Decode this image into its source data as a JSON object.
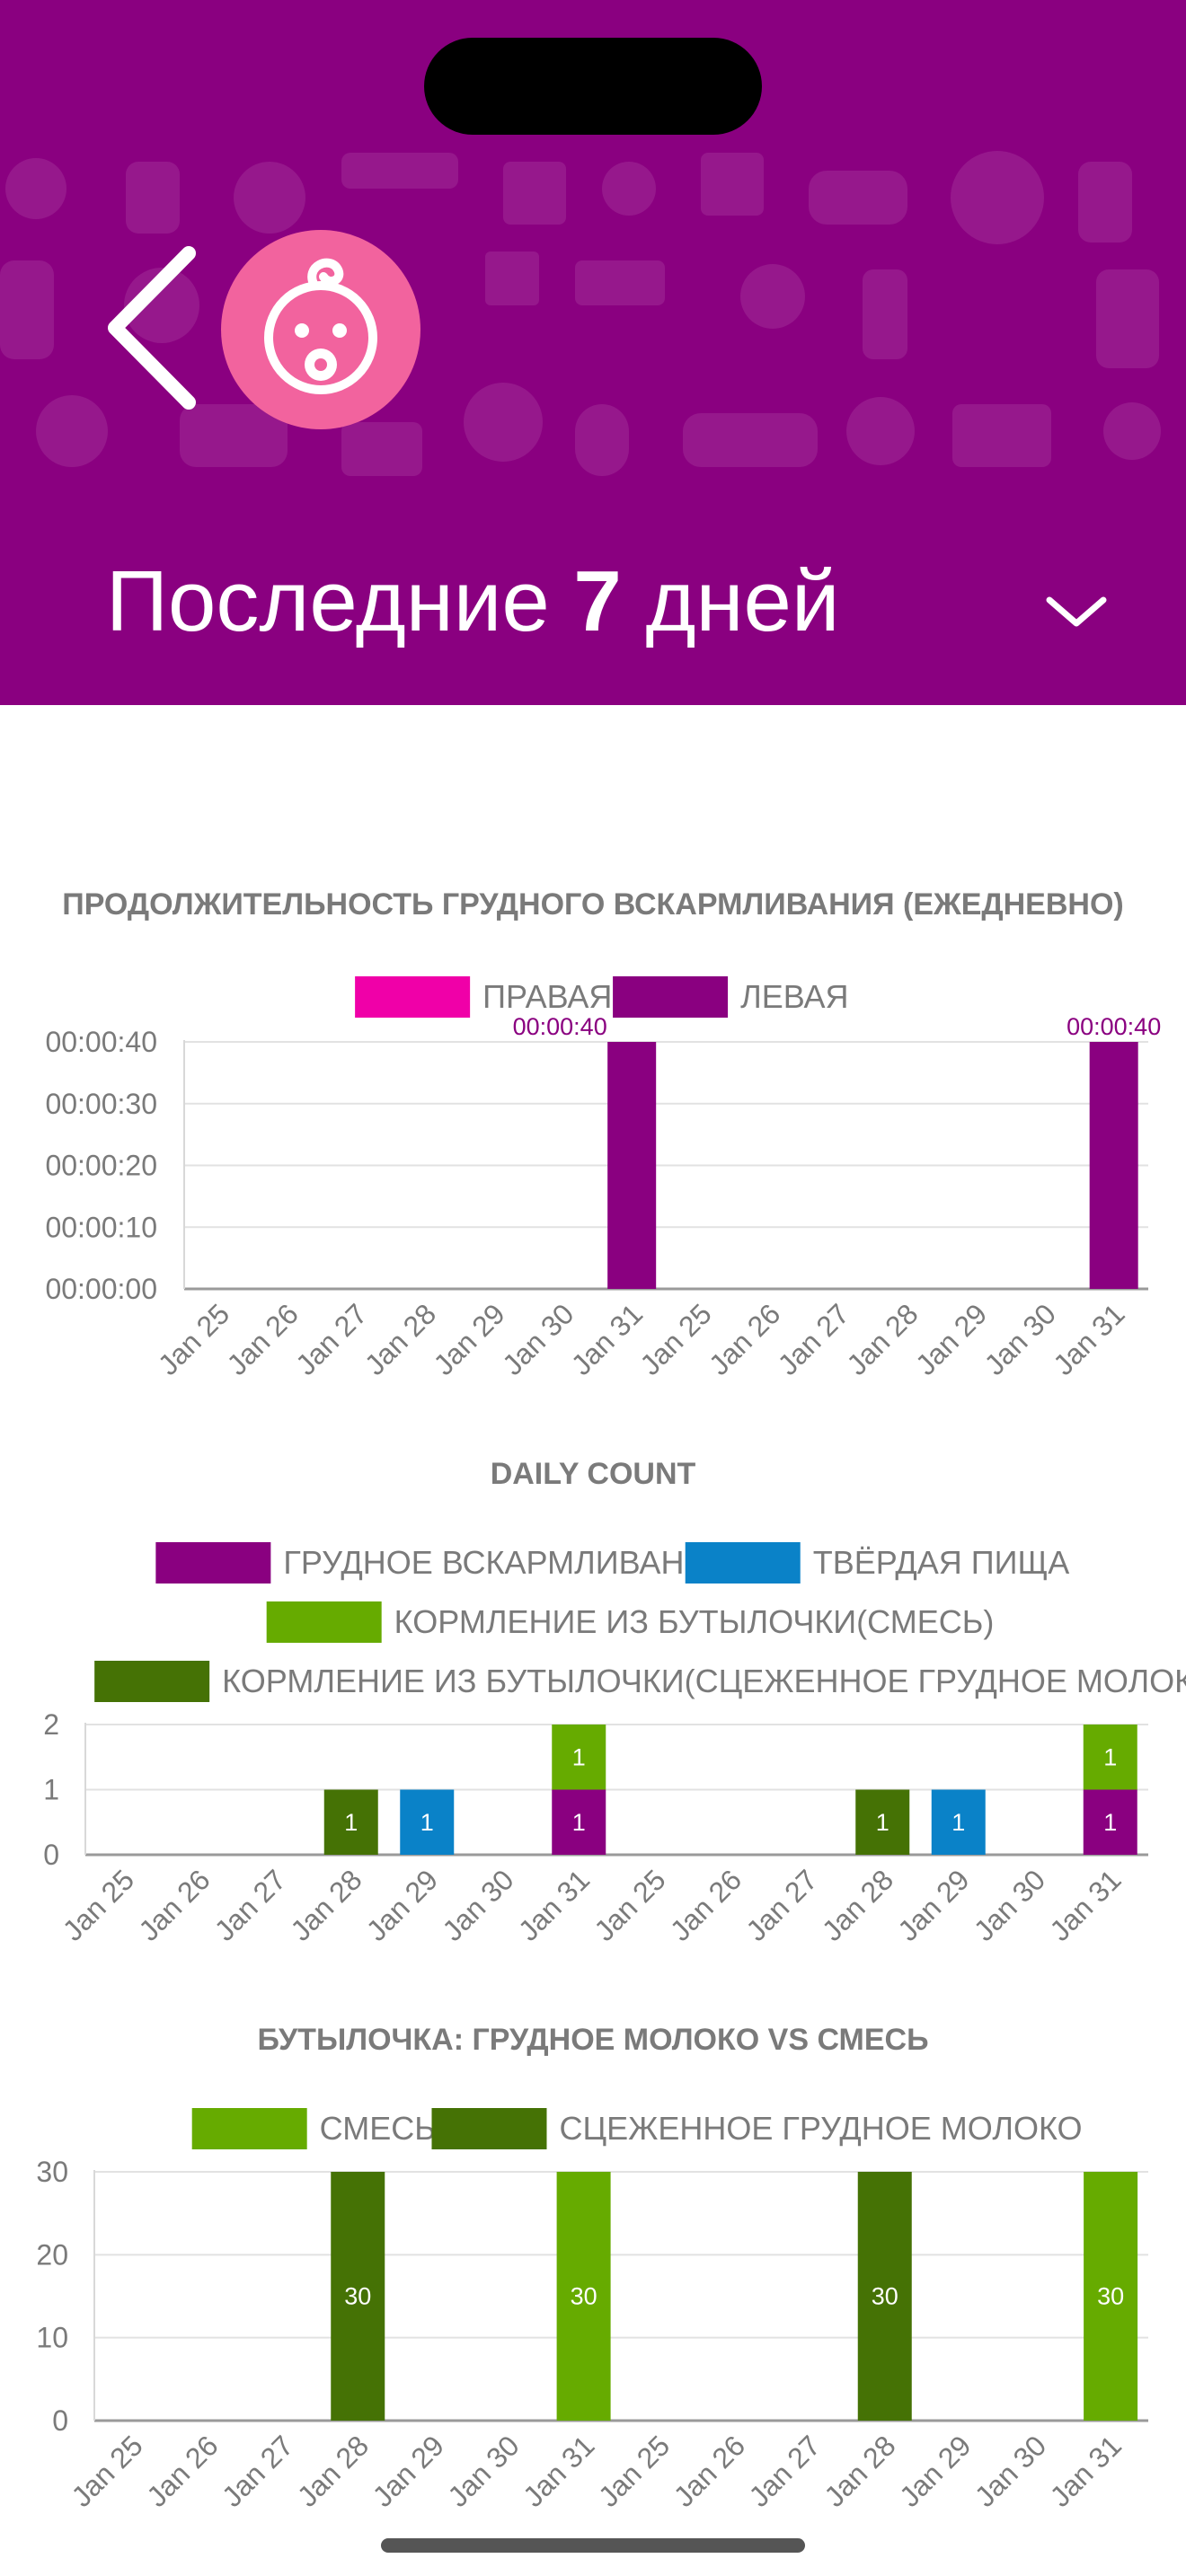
{
  "header": {
    "period_prefix": "Последние ",
    "period_number": "7",
    "period_suffix": " дней",
    "back_icon": "chevron-left-icon",
    "avatar_icon": "baby-face-icon",
    "dropdown_icon": "chevron-down-icon"
  },
  "colors": {
    "header_bg": "#8a0080",
    "avatar_bg": "#f2639e",
    "right_breast": "#f000a8",
    "left_breast": "#8a0080",
    "breastfeeding": "#8a0080",
    "solid_food": "#0a82c8",
    "bottle_formula": "#66ab00",
    "bottle_expressed": "#457205"
  },
  "chart_data": [
    {
      "type": "bar",
      "title": "ПРОДОЛЖИТЕЛЬНОСТЬ ГРУДНОГО ВСКАРМЛИВАНИЯ (ЕЖЕДНЕВНО)",
      "categories": [
        "Jan 25",
        "Jan 26",
        "Jan 27",
        "Jan 28",
        "Jan 29",
        "Jan 30",
        "Jan 31",
        "Jan 25",
        "Jan 26",
        "Jan 27",
        "Jan 28",
        "Jan 29",
        "Jan 30",
        "Jan 31"
      ],
      "yticks": [
        "00:00:00",
        "00:00:10",
        "00:00:20",
        "00:00:30",
        "00:00:40"
      ],
      "ylim": [
        0,
        40
      ],
      "series": [
        {
          "name": "ПРАВАЯ",
          "color": "#f000a8",
          "values": [
            0,
            0,
            0,
            0,
            0,
            0,
            0,
            0,
            0,
            0,
            0,
            0,
            0,
            0
          ]
        },
        {
          "name": "ЛЕВАЯ",
          "color": "#8a0080",
          "values": [
            0,
            0,
            0,
            0,
            0,
            0,
            40,
            0,
            0,
            0,
            0,
            0,
            0,
            40
          ]
        }
      ],
      "labels": [
        {
          "index": 6,
          "text": "00:00:40",
          "partial": true
        },
        {
          "index": 13,
          "text": "00:00:40",
          "partial": false
        }
      ],
      "legend": "top-center",
      "grid": true
    },
    {
      "type": "bar",
      "stacked": true,
      "title": "DAILY COUNT",
      "categories": [
        "Jan 25",
        "Jan 26",
        "Jan 27",
        "Jan 28",
        "Jan 29",
        "Jan 30",
        "Jan 31",
        "Jan 25",
        "Jan 26",
        "Jan 27",
        "Jan 28",
        "Jan 29",
        "Jan 30",
        "Jan 31"
      ],
      "yticks": [
        "0",
        "1",
        "2"
      ],
      "ylim": [
        0,
        2
      ],
      "series": [
        {
          "name": "ГРУДНОЕ ВСКАРМЛИВАНИЕ",
          "color": "#8a0080",
          "values": [
            0,
            0,
            0,
            0,
            0,
            0,
            1,
            0,
            0,
            0,
            0,
            0,
            0,
            1
          ]
        },
        {
          "name": "ТВЁРДАЯ ПИЩА",
          "color": "#0a82c8",
          "values": [
            0,
            0,
            0,
            0,
            1,
            0,
            0,
            0,
            0,
            0,
            0,
            1,
            0,
            0
          ]
        },
        {
          "name": "КОРМЛЕНИЕ ИЗ БУТЫЛОЧКИ(СМЕСЬ)",
          "color": "#66ab00",
          "values": [
            0,
            0,
            0,
            0,
            0,
            0,
            1,
            0,
            0,
            0,
            0,
            0,
            0,
            1
          ]
        },
        {
          "name": "КОРМЛЕНИЕ ИЗ БУТЫЛОЧКИ(СЦЕЖЕННОЕ ГРУДНОЕ МОЛОКО)",
          "color": "#457205",
          "values": [
            0,
            0,
            0,
            1,
            0,
            0,
            0,
            0,
            0,
            0,
            1,
            0,
            0,
            0
          ]
        }
      ],
      "legend": "top-center",
      "grid": true
    },
    {
      "type": "bar",
      "stacked": true,
      "title": "БУТЫЛОЧКА: ГРУДНОЕ МОЛОКО VS СМЕСЬ",
      "categories": [
        "Jan 25",
        "Jan 26",
        "Jan 27",
        "Jan 28",
        "Jan 29",
        "Jan 30",
        "Jan 31",
        "Jan 25",
        "Jan 26",
        "Jan 27",
        "Jan 28",
        "Jan 29",
        "Jan 30",
        "Jan 31"
      ],
      "yticks": [
        "0",
        "10",
        "20",
        "30"
      ],
      "ylim": [
        0,
        30
      ],
      "series": [
        {
          "name": "СМЕСЬ",
          "color": "#66ab00",
          "values": [
            0,
            0,
            0,
            0,
            0,
            0,
            30,
            0,
            0,
            0,
            0,
            0,
            0,
            30
          ]
        },
        {
          "name": "СЦЕЖЕННОЕ ГРУДНОЕ МОЛОКО",
          "color": "#457205",
          "values": [
            0,
            0,
            0,
            30,
            0,
            0,
            0,
            0,
            0,
            0,
            30,
            0,
            0,
            0
          ]
        }
      ],
      "legend": "top-center",
      "grid": true
    }
  ]
}
